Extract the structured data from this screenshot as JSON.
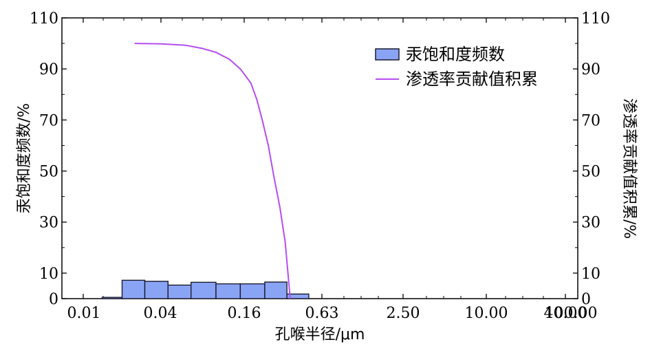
{
  "chart_data": {
    "type": "bar",
    "xlabel": "孔喉半径/μm",
    "ylabel_left": "汞饱和度频数/%",
    "ylabel_right": "渗透率贡献值积累/%",
    "x_scale": "log4",
    "x_ticks": [
      "0.01",
      "0.04",
      "0.16",
      "0.63",
      "2.50",
      "10.00",
      "40.00",
      "100.00"
    ],
    "y_ticks": [
      "0",
      "10",
      "30",
      "50",
      "70",
      "90",
      "110"
    ],
    "ylim": [
      0,
      110
    ],
    "grid": false,
    "legend_position": "top-right",
    "colors": {
      "bar_fill": "#8aa4f5",
      "bar_stroke": "#1a1a2e",
      "line": "#b54cf3",
      "axis": "#000000"
    },
    "series": [
      {
        "name": "汞饱和度频数",
        "type": "bar",
        "bins": [
          {
            "x0": 0.014,
            "x1": 0.02,
            "value": 0.5
          },
          {
            "x0": 0.02,
            "x1": 0.03,
            "value": 7.2
          },
          {
            "x0": 0.03,
            "x1": 0.045,
            "value": 6.8
          },
          {
            "x0": 0.045,
            "x1": 0.066,
            "value": 5.3
          },
          {
            "x0": 0.066,
            "x1": 0.1,
            "value": 6.4
          },
          {
            "x0": 0.1,
            "x1": 0.15,
            "value": 5.8
          },
          {
            "x0": 0.15,
            "x1": 0.23,
            "value": 5.8
          },
          {
            "x0": 0.23,
            "x1": 0.34,
            "value": 6.5
          },
          {
            "x0": 0.34,
            "x1": 0.5,
            "value": 1.8
          }
        ]
      },
      {
        "name": "渗透率贡献值积累",
        "type": "line",
        "points": [
          {
            "x": 0.025,
            "y": 100.0
          },
          {
            "x": 0.04,
            "y": 99.8
          },
          {
            "x": 0.06,
            "y": 99.3
          },
          {
            "x": 0.08,
            "y": 98.0
          },
          {
            "x": 0.1,
            "y": 96.5
          },
          {
            "x": 0.125,
            "y": 93.8
          },
          {
            "x": 0.15,
            "y": 90.0
          },
          {
            "x": 0.18,
            "y": 84.5
          },
          {
            "x": 0.2,
            "y": 78.0
          },
          {
            "x": 0.22,
            "y": 70.0
          },
          {
            "x": 0.245,
            "y": 60.0
          },
          {
            "x": 0.27,
            "y": 48.0
          },
          {
            "x": 0.3,
            "y": 36.0
          },
          {
            "x": 0.33,
            "y": 22.0
          },
          {
            "x": 0.36,
            "y": 0.0
          }
        ]
      }
    ]
  }
}
